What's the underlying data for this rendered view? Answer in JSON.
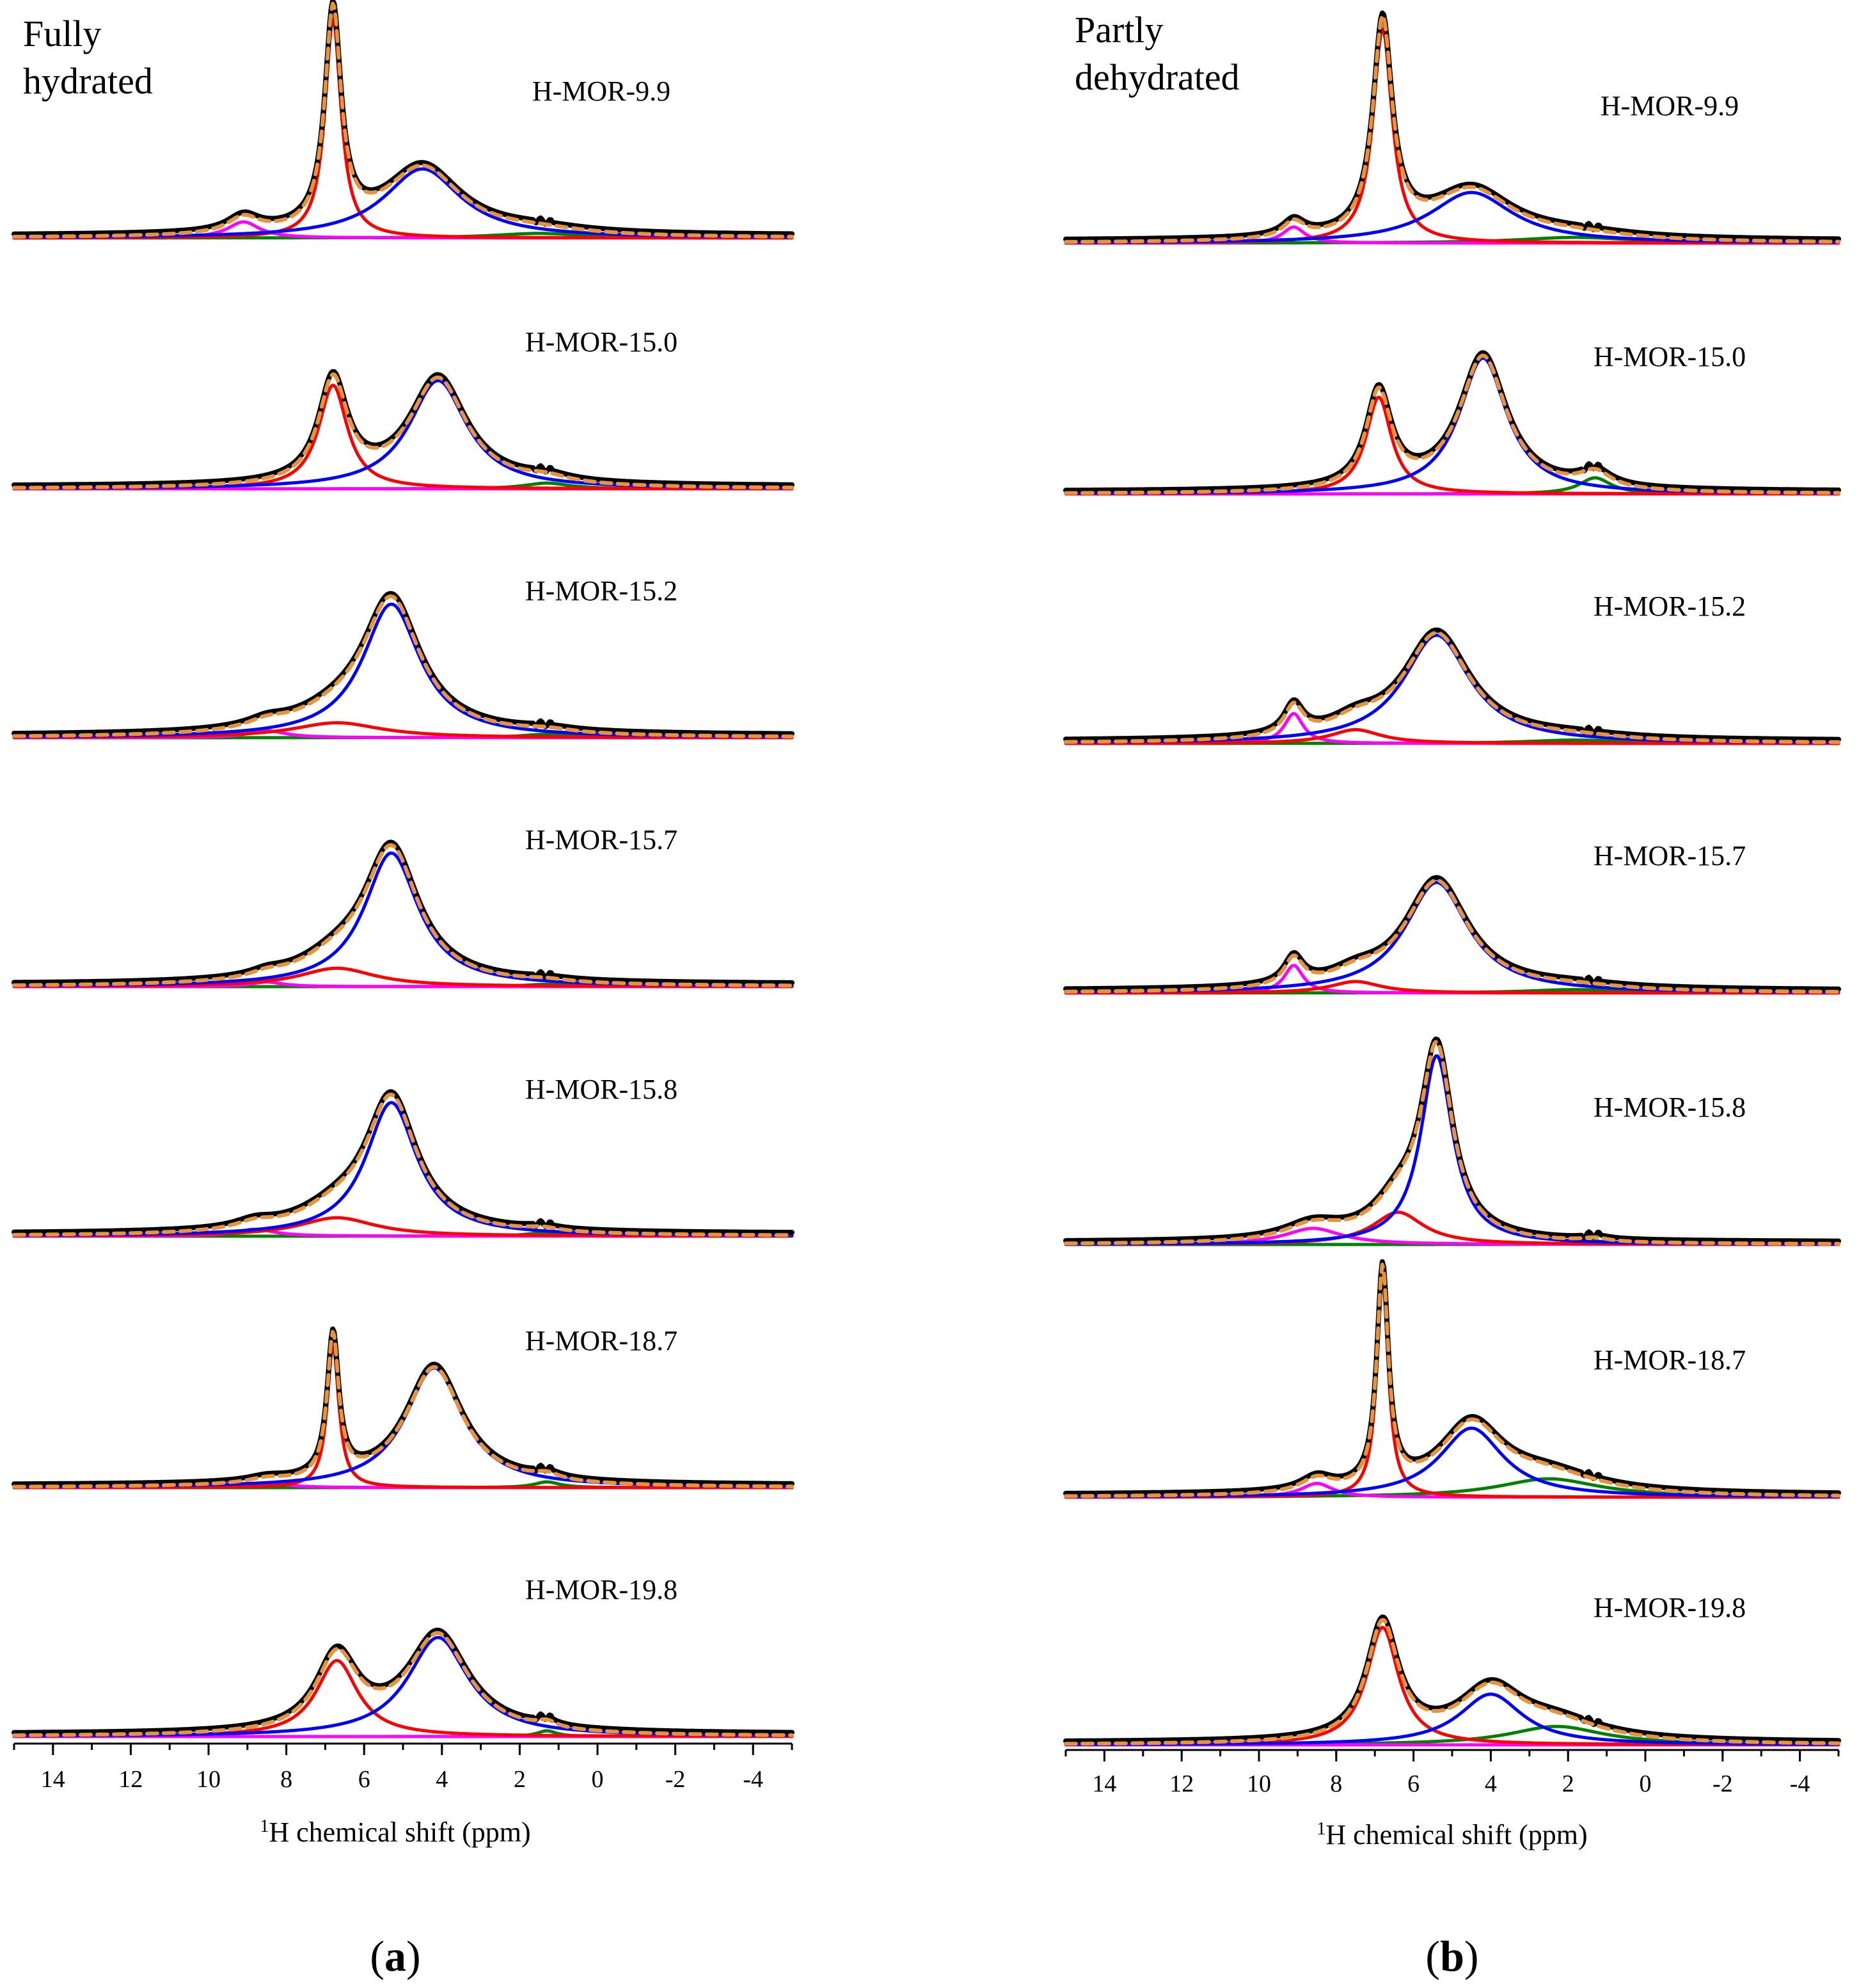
{
  "chart_data": [
    {
      "type": "line",
      "panel_label": "(a)",
      "panel_letter": "a",
      "condition": [
        "Fully",
        "hydrated"
      ],
      "xlabel_sup": "1",
      "xlabel": "H chemical shift (ppm)",
      "xlim": [
        15,
        -5
      ],
      "xticks": [
        14,
        12,
        10,
        8,
        6,
        4,
        2,
        0,
        -2,
        -4
      ],
      "colors": {
        "experimental": "#000000",
        "fit_sum": "#E8923A",
        "component_1": "#FF00FF",
        "component_2": "#FF0000",
        "component_3": "#0000FF",
        "component_4": "#008000"
      },
      "spectra": [
        {
          "label": "H-MOR-9.9",
          "components": [
            {
              "name": "component_1",
              "center": 9.1,
              "amp": 0.07,
              "width": 0.5
            },
            {
              "name": "component_2",
              "center": 6.8,
              "amp": 0.95,
              "width": 0.25
            },
            {
              "name": "component_3",
              "center": 4.5,
              "amp": 0.3,
              "width": 1.2
            },
            {
              "name": "component_4",
              "center": 1.5,
              "amp": 0.02,
              "width": 1.4
            }
          ]
        },
        {
          "label": "H-MOR-15.0",
          "components": [
            {
              "name": "component_1",
              "center": 9.0,
              "amp": 0.0,
              "width": 0.5
            },
            {
              "name": "component_2",
              "center": 6.8,
              "amp": 0.45,
              "width": 0.45
            },
            {
              "name": "component_3",
              "center": 4.1,
              "amp": 0.47,
              "width": 0.9
            },
            {
              "name": "component_4",
              "center": 1.3,
              "amp": 0.025,
              "width": 0.7
            }
          ]
        },
        {
          "label": "H-MOR-15.2",
          "components": [
            {
              "name": "component_1",
              "center": 8.5,
              "amp": 0.03,
              "width": 0.6
            },
            {
              "name": "component_2",
              "center": 6.7,
              "amp": 0.065,
              "width": 1.4
            },
            {
              "name": "component_3",
              "center": 5.3,
              "amp": 0.58,
              "width": 0.9
            },
            {
              "name": "component_4",
              "center": 1.3,
              "amp": 0.015,
              "width": 0.8
            }
          ]
        },
        {
          "label": "H-MOR-15.7",
          "components": [
            {
              "name": "component_1",
              "center": 8.5,
              "amp": 0.02,
              "width": 0.5
            },
            {
              "name": "component_2",
              "center": 6.7,
              "amp": 0.08,
              "width": 1.2
            },
            {
              "name": "component_3",
              "center": 5.3,
              "amp": 0.58,
              "width": 0.85
            },
            {
              "name": "component_4",
              "center": 1.3,
              "amp": 0.01,
              "width": 0.7
            }
          ]
        },
        {
          "label": "H-MOR-15.8",
          "components": [
            {
              "name": "component_1",
              "center": 8.8,
              "amp": 0.03,
              "width": 0.6
            },
            {
              "name": "component_2",
              "center": 6.7,
              "amp": 0.08,
              "width": 1.2
            },
            {
              "name": "component_3",
              "center": 5.3,
              "amp": 0.58,
              "width": 0.8
            },
            {
              "name": "component_4",
              "center": 1.4,
              "amp": 0.015,
              "width": 0.5
            }
          ]
        },
        {
          "label": "H-MOR-18.7",
          "components": [
            {
              "name": "component_1",
              "center": 8.5,
              "amp": 0.02,
              "width": 0.6
            },
            {
              "name": "component_2",
              "center": 6.8,
              "amp": 0.62,
              "width": 0.18
            },
            {
              "name": "component_3",
              "center": 4.2,
              "amp": 0.52,
              "width": 0.9
            },
            {
              "name": "component_4",
              "center": 1.3,
              "amp": 0.025,
              "width": 0.4
            }
          ]
        },
        {
          "label": "H-MOR-19.8",
          "components": [
            {
              "name": "component_1",
              "center": 8.5,
              "amp": 0.0,
              "width": 0.6
            },
            {
              "name": "component_2",
              "center": 6.7,
              "amp": 0.33,
              "width": 0.65
            },
            {
              "name": "component_3",
              "center": 4.1,
              "amp": 0.43,
              "width": 0.95
            },
            {
              "name": "component_4",
              "center": 1.3,
              "amp": 0.025,
              "width": 0.3
            }
          ]
        }
      ]
    },
    {
      "type": "line",
      "panel_label": "(b)",
      "panel_letter": "b",
      "condition": [
        "Partly",
        "dehydrated"
      ],
      "xlabel_sup": "1",
      "xlabel": "H chemical shift (ppm)",
      "xlim": [
        15,
        -5
      ],
      "xticks": [
        14,
        12,
        10,
        8,
        6,
        4,
        2,
        0,
        -2,
        -4
      ],
      "colors": {
        "experimental": "#000000",
        "fit_sum": "#E8923A",
        "component_1": "#FF00FF",
        "component_2": "#FF0000",
        "component_3": "#0000FF",
        "component_4": "#008000"
      },
      "spectra": [
        {
          "label": "H-MOR-9.9",
          "components": [
            {
              "name": "component_1",
              "center": 9.1,
              "amp": 0.07,
              "width": 0.35
            },
            {
              "name": "component_2",
              "center": 6.8,
              "amp": 0.93,
              "width": 0.3
            },
            {
              "name": "component_3",
              "center": 4.5,
              "amp": 0.22,
              "width": 1.3
            },
            {
              "name": "component_4",
              "center": 1.8,
              "amp": 0.025,
              "width": 1.8
            }
          ]
        },
        {
          "label": "H-MOR-15.0",
          "components": [
            {
              "name": "component_1",
              "center": 9.0,
              "amp": 0.0,
              "width": 0.4
            },
            {
              "name": "component_2",
              "center": 6.9,
              "amp": 0.42,
              "width": 0.4
            },
            {
              "name": "component_3",
              "center": 4.2,
              "amp": 0.59,
              "width": 0.75
            },
            {
              "name": "component_4",
              "center": 1.3,
              "amp": 0.07,
              "width": 0.5
            }
          ]
        },
        {
          "label": "H-MOR-15.2",
          "components": [
            {
              "name": "component_1",
              "center": 9.1,
              "amp": 0.13,
              "width": 0.3
            },
            {
              "name": "component_2",
              "center": 7.5,
              "amp": 0.06,
              "width": 0.8
            },
            {
              "name": "component_3",
              "center": 5.4,
              "amp": 0.47,
              "width": 1.05
            },
            {
              "name": "component_4",
              "center": 1.8,
              "amp": 0.015,
              "width": 1.5
            }
          ]
        },
        {
          "label": "H-MOR-15.7",
          "components": [
            {
              "name": "component_1",
              "center": 9.1,
              "amp": 0.12,
              "width": 0.3
            },
            {
              "name": "component_2",
              "center": 7.5,
              "amp": 0.05,
              "width": 0.8
            },
            {
              "name": "component_3",
              "center": 5.4,
              "amp": 0.48,
              "width": 1.0
            },
            {
              "name": "component_4",
              "center": 1.8,
              "amp": 0.015,
              "width": 1.5
            }
          ]
        },
        {
          "label": "H-MOR-15.8",
          "components": [
            {
              "name": "component_1",
              "center": 8.6,
              "amp": 0.07,
              "width": 0.9
            },
            {
              "name": "component_2",
              "center": 6.4,
              "amp": 0.14,
              "width": 0.8
            },
            {
              "name": "component_3",
              "center": 5.4,
              "amp": 0.82,
              "width": 0.5
            },
            {
              "name": "component_4",
              "center": 1.3,
              "amp": 0.015,
              "width": 0.4
            }
          ]
        },
        {
          "label": "H-MOR-18.7",
          "components": [
            {
              "name": "component_1",
              "center": 8.5,
              "amp": 0.06,
              "width": 0.5
            },
            {
              "name": "component_2",
              "center": 6.8,
              "amp": 0.95,
              "width": 0.18
            },
            {
              "name": "component_3",
              "center": 4.5,
              "amp": 0.3,
              "width": 1.0
            },
            {
              "name": "component_4",
              "center": 2.5,
              "amp": 0.08,
              "width": 1.6
            }
          ]
        },
        {
          "label": "H-MOR-19.8",
          "components": [
            {
              "name": "component_1",
              "center": 9.0,
              "amp": 0.0,
              "width": 0.4
            },
            {
              "name": "component_2",
              "center": 6.8,
              "amp": 0.51,
              "width": 0.5
            },
            {
              "name": "component_3",
              "center": 4.0,
              "amp": 0.22,
              "width": 1.0
            },
            {
              "name": "component_4",
              "center": 2.3,
              "amp": 0.08,
              "width": 1.5
            }
          ]
        }
      ]
    }
  ]
}
